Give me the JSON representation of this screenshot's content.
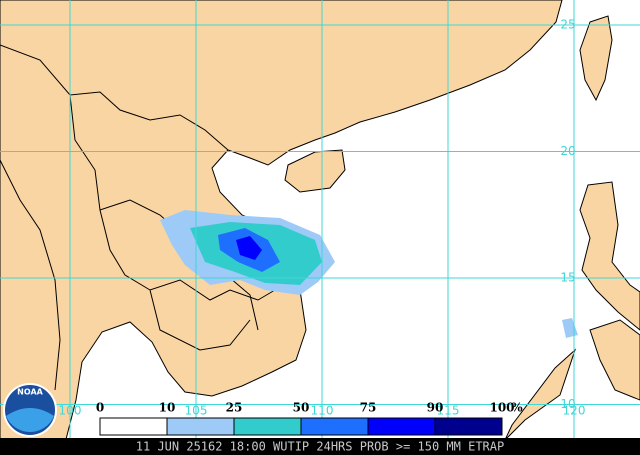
{
  "map": {
    "latitudes": [
      25,
      20,
      15,
      10
    ],
    "longitudes": [
      100,
      105,
      110,
      115,
      120
    ],
    "logo": "NOAA",
    "legend": {
      "ticks": [
        0,
        10,
        25,
        50,
        75,
        90,
        100
      ],
      "unit": "%",
      "colors": [
        "#ffffff",
        "#9ecaf7",
        "#33cccc",
        "#1f6fff",
        "#0000ff",
        "#00008f"
      ]
    },
    "footer": "11 JUN 25162 18:00 WUTIP 24HRS PROB >= 150 MM ETRAP"
  }
}
